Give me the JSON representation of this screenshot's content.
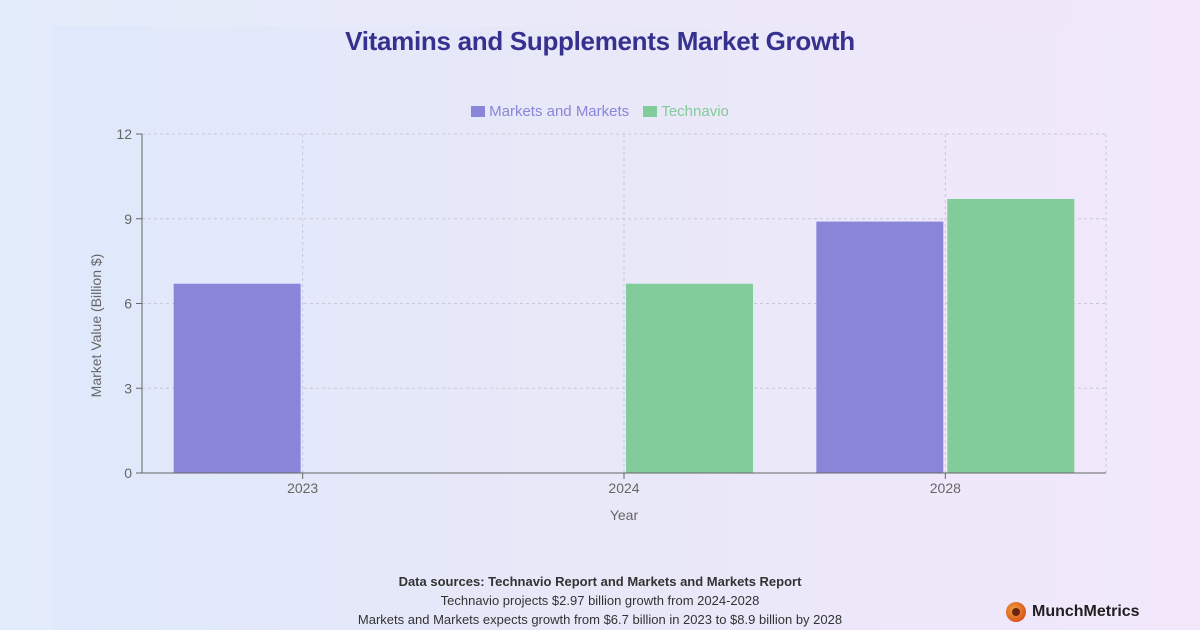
{
  "chart_data": {
    "type": "bar",
    "title": "Vitamins and Supplements Market Growth",
    "categories": [
      "2023",
      "2024",
      "2028"
    ],
    "series": [
      {
        "name": "Markets and Markets",
        "color": "#8986da",
        "values": [
          6.7,
          null,
          8.9
        ]
      },
      {
        "name": "Technavio",
        "color": "#82cb9b",
        "values": [
          null,
          6.7,
          9.7
        ]
      }
    ],
    "xlabel": "Year",
    "ylabel": "Market Value (Billion $)",
    "ylim": [
      0,
      12
    ],
    "yticks": [
      0,
      3,
      6,
      9,
      12
    ],
    "grid": true,
    "legend": "top-center"
  },
  "sources": {
    "heading": "Data sources: Technavio Report and Markets and Markets Report",
    "line1": "Technavio projects $2.97 billion growth from 2024-2028",
    "line2": "Markets and Markets expects growth from $6.7 billion in 2023 to $8.9 billion by 2028"
  },
  "brand": {
    "name": "MunchMetrics"
  },
  "colors": {
    "title": "#36308f",
    "axis": "#666666",
    "grid": "#c8c8d8"
  }
}
